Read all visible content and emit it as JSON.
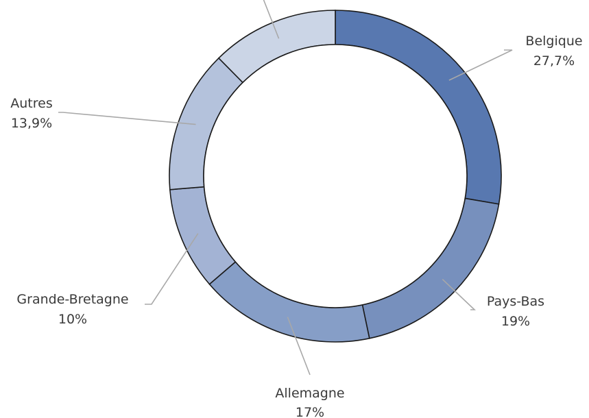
{
  "chart_data": {
    "type": "pie",
    "donut": true,
    "legend": "none",
    "categories": [
      "Belgique",
      "Pays-Bas",
      "Allemagne",
      "Grande-Bretagne",
      "Autres",
      ""
    ],
    "values": [
      27.7,
      19,
      17,
      10,
      13.9,
      12.4
    ],
    "value_labels": [
      "27,7%",
      "19%",
      "17%",
      "10%",
      "13,9%",
      ""
    ],
    "colors": [
      "#5878b0",
      "#7790bd",
      "#869ec7",
      "#a3b3d4",
      "#b4c2dc",
      "#cbd5e6"
    ]
  }
}
